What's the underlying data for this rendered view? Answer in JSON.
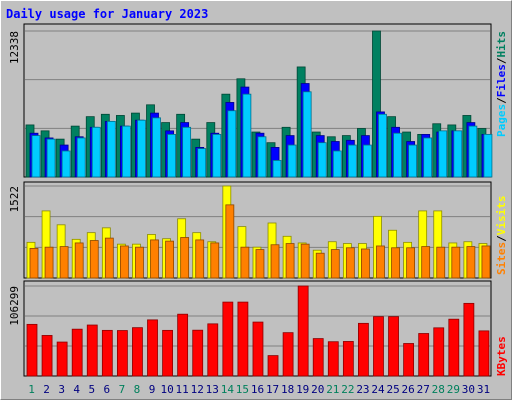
{
  "title": "Daily usage for January 2023",
  "chart_data": {
    "type": "bar",
    "title": "Daily usage for January 2023",
    "categories": [
      "1",
      "2",
      "3",
      "4",
      "5",
      "6",
      "7",
      "8",
      "9",
      "10",
      "11",
      "12",
      "13",
      "14",
      "15",
      "16",
      "17",
      "18",
      "19",
      "20",
      "21",
      "22",
      "23",
      "24",
      "25",
      "26",
      "27",
      "28",
      "29",
      "30",
      "31"
    ],
    "weekend_days": [
      "1",
      "7",
      "8",
      "14",
      "15",
      "21",
      "22",
      "28",
      "29"
    ],
    "panels": [
      {
        "id": "hits-files-pages",
        "ymax_label": "12338",
        "ymax": 12338,
        "legend": [
          {
            "label": "Pages",
            "color": "#00ccff"
          },
          {
            "label": "/",
            "color": "#000000"
          },
          {
            "label": "Files",
            "color": "#0000ff"
          },
          {
            "label": "/",
            "color": "#000000"
          },
          {
            "label": "Hits",
            "color": "#008060"
          }
        ],
        "series": [
          {
            "name": "Hits",
            "color": "#008060",
            "values": [
              4400,
              3900,
              3200,
              4300,
              5100,
              5300,
              5200,
              5400,
              6100,
              4600,
              5300,
              3200,
              4600,
              7000,
              8300,
              3800,
              2900,
              4200,
              9300,
              3800,
              3400,
              3500,
              4100,
              12338,
              5100,
              3800,
              3600,
              4500,
              4400,
              5200,
              4100
            ]
          },
          {
            "name": "Files",
            "color": "#0000ff",
            "values": [
              3700,
              3300,
              2700,
              3400,
              4200,
              4700,
              4300,
              4800,
              5400,
              3900,
              4600,
              2500,
              3700,
              6300,
              7600,
              3700,
              2500,
              3500,
              7900,
              3500,
              3000,
              3100,
              3500,
              5500,
              4200,
              3000,
              3600,
              3800,
              3900,
              4600,
              3600
            ]
          },
          {
            "name": "Pages",
            "color": "#00ccff",
            "values": [
              3500,
              3200,
              2200,
              3300,
              4200,
              4700,
              4300,
              4800,
              5000,
              3600,
              4200,
              2400,
              3600,
              5600,
              7000,
              3400,
              1400,
              2700,
              7200,
              2900,
              2200,
              2700,
              2700,
              5300,
              3700,
              2700,
              3300,
              3900,
              3900,
              4300,
              3600
            ]
          }
        ]
      },
      {
        "id": "visits-sites",
        "ymax_label": "1522",
        "ymax": 1522,
        "legend": [
          {
            "label": "Sites",
            "color": "#ff8000"
          },
          {
            "label": "/",
            "color": "#000000"
          },
          {
            "label": "Visits",
            "color": "#ffff00"
          }
        ],
        "series": [
          {
            "name": "Visits",
            "color": "#ffff00",
            "values": [
              590,
              1110,
              880,
              640,
              750,
              830,
              560,
              560,
              720,
              650,
              980,
              750,
              600,
              1522,
              850,
              510,
              910,
              690,
              580,
              460,
              600,
              570,
              570,
              1020,
              790,
              590,
              1110,
              1110,
              580,
              600,
              570
            ]
          },
          {
            "name": "Sites",
            "color": "#ff8000",
            "values": [
              490,
              510,
              520,
              580,
              620,
              660,
              530,
              510,
              630,
              610,
              670,
              630,
              580,
              1210,
              510,
              470,
              550,
              570,
              560,
              410,
              470,
              500,
              480,
              530,
              500,
              500,
              520,
              510,
              510,
              520,
              530
            ]
          }
        ]
      },
      {
        "id": "kbytes",
        "ymax_label": "106299",
        "ymax": 106299,
        "legend": [
          {
            "label": "KBytes",
            "color": "#ff0000"
          }
        ],
        "series": [
          {
            "name": "KBytes",
            "color": "#ff0000",
            "values": [
              61000,
              47900,
              40100,
              55300,
              60200,
              53900,
              53700,
              57100,
              66300,
              53900,
              73000,
              54100,
              61600,
              87300,
              87300,
              63700,
              24100,
              51200,
              106299,
              44200,
              40500,
              40800,
              62200,
              70100,
              70100,
              38400,
              50200,
              56900,
              67100,
              85800,
              53300
            ]
          }
        ]
      }
    ]
  }
}
